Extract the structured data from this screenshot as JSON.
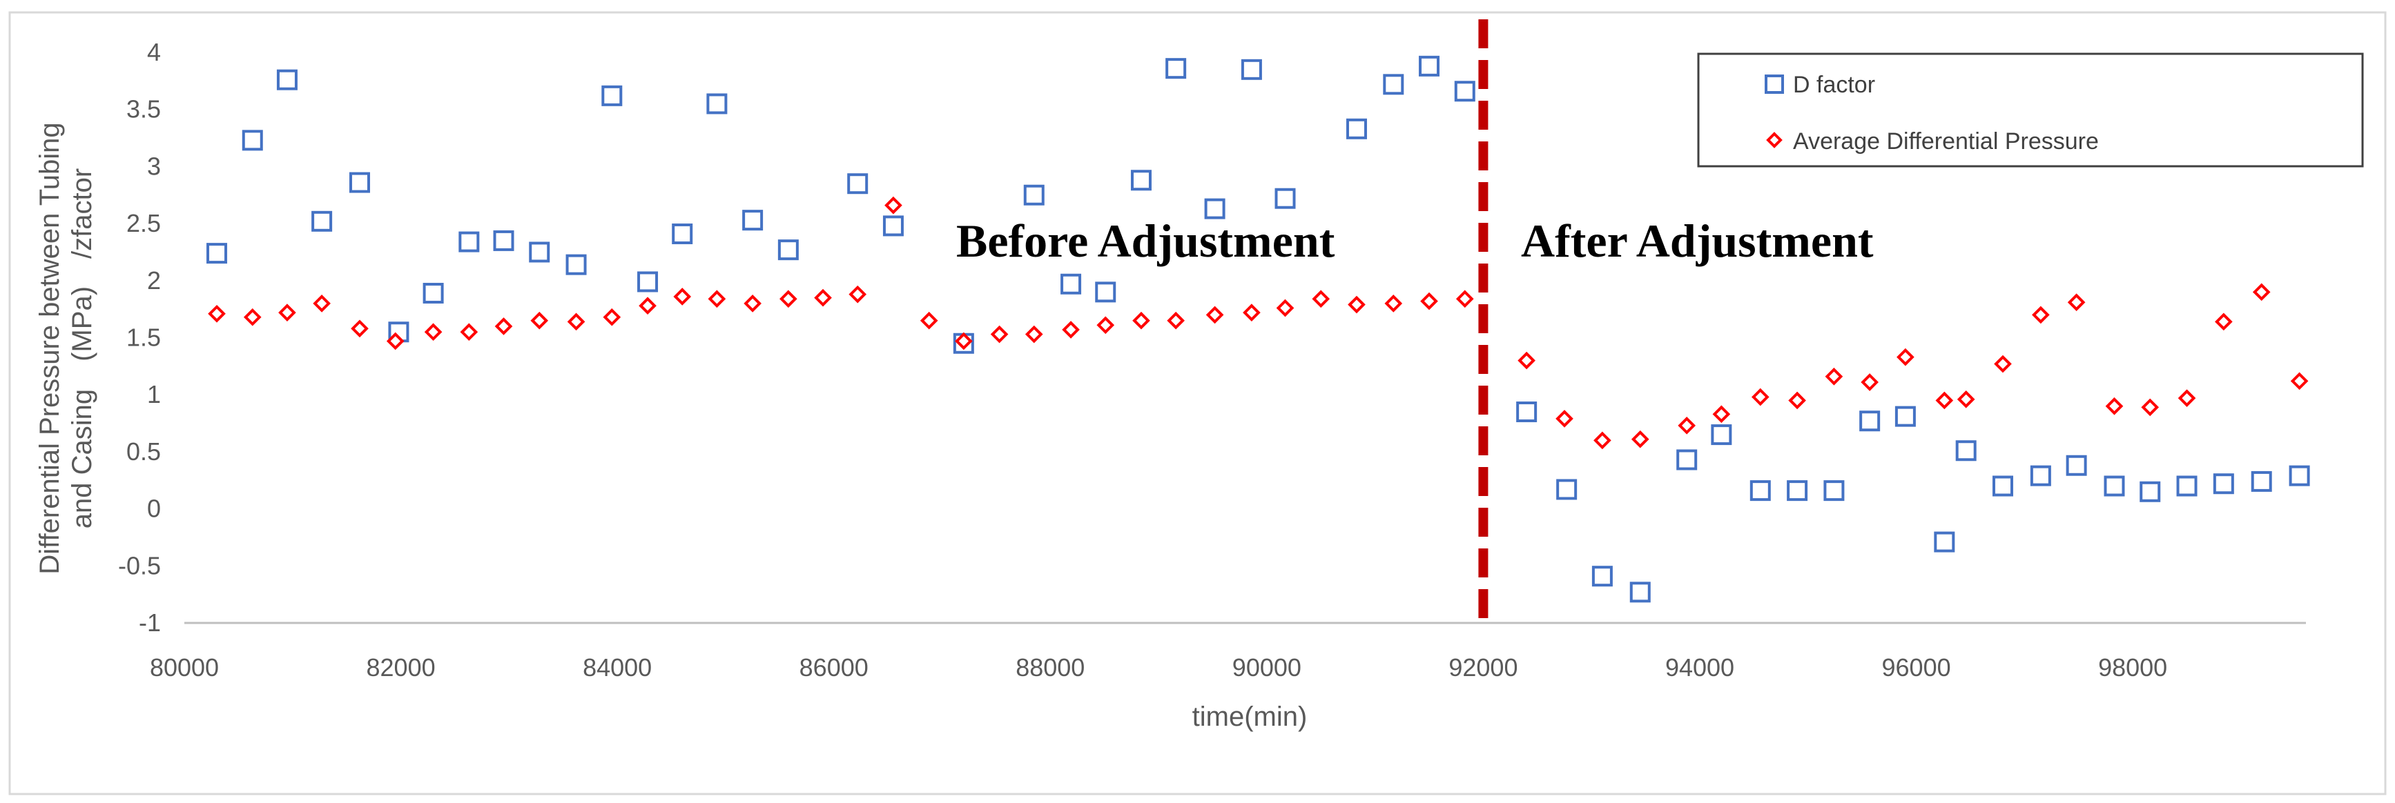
{
  "chart_data": {
    "type": "scatter",
    "xlabel": "time(min)",
    "ylabel_line1": "Differential Pressure between Tubing",
    "ylabel_line2": "and Casing　(MPa)　/zfactor",
    "xlim": [
      80000,
      99600
    ],
    "ylim": [
      -1,
      4
    ],
    "x_ticks": [
      "80000",
      "82000",
      "84000",
      "86000",
      "88000",
      "90000",
      "92000",
      "94000",
      "96000",
      "98000"
    ],
    "y_ticks": [
      "4",
      "3.5",
      "3",
      "2.5",
      "2",
      "1.5",
      "1",
      "0.5",
      "0",
      "-0.5",
      "-1"
    ],
    "grid": false,
    "legend_position": "top-right",
    "divider_x": 92000,
    "annotations": {
      "before": "Before Adjustment",
      "after": "After Adjustment"
    },
    "series": [
      {
        "name": "D  factor",
        "marker": "square",
        "color": "#4472C4",
        "points": [
          [
            80300,
            2.24
          ],
          [
            80630,
            3.23
          ],
          [
            80950,
            3.76
          ],
          [
            81270,
            2.52
          ],
          [
            81620,
            2.86
          ],
          [
            81980,
            1.55
          ],
          [
            82300,
            1.89
          ],
          [
            82630,
            2.34
          ],
          [
            82950,
            2.35
          ],
          [
            83280,
            2.25
          ],
          [
            83620,
            2.14
          ],
          [
            83950,
            3.62
          ],
          [
            84280,
            1.99
          ],
          [
            84600,
            2.41
          ],
          [
            84920,
            3.55
          ],
          [
            85250,
            2.53
          ],
          [
            85580,
            2.27
          ],
          [
            86220,
            2.85
          ],
          [
            86550,
            2.48
          ],
          [
            87200,
            1.45
          ],
          [
            87850,
            2.75
          ],
          [
            88190,
            1.97
          ],
          [
            88510,
            1.9
          ],
          [
            88840,
            2.88
          ],
          [
            89160,
            3.86
          ],
          [
            89520,
            2.63
          ],
          [
            89860,
            3.85
          ],
          [
            90170,
            2.72
          ],
          [
            90830,
            3.33
          ],
          [
            91170,
            3.72
          ],
          [
            91500,
            3.88
          ],
          [
            91830,
            3.66
          ],
          [
            92400,
            0.85
          ],
          [
            92770,
            0.17
          ],
          [
            93100,
            -0.59
          ],
          [
            93450,
            -0.73
          ],
          [
            93880,
            0.43
          ],
          [
            94200,
            0.65
          ],
          [
            94560,
            0.16
          ],
          [
            94900,
            0.16
          ],
          [
            95240,
            0.16
          ],
          [
            95570,
            0.77
          ],
          [
            95900,
            0.81
          ],
          [
            96260,
            -0.29
          ],
          [
            96460,
            0.51
          ],
          [
            96800,
            0.2
          ],
          [
            97150,
            0.29
          ],
          [
            97480,
            0.38
          ],
          [
            97830,
            0.2
          ],
          [
            98160,
            0.15
          ],
          [
            98500,
            0.2
          ],
          [
            98840,
            0.22
          ],
          [
            99190,
            0.24
          ],
          [
            99540,
            0.29
          ]
        ]
      },
      {
        "name": "Average Differential Pressure",
        "marker": "diamond",
        "color": "#FF0000",
        "points": [
          [
            80300,
            1.71
          ],
          [
            80630,
            1.68
          ],
          [
            80950,
            1.72
          ],
          [
            81270,
            1.8
          ],
          [
            81620,
            1.58
          ],
          [
            81950,
            1.47
          ],
          [
            82300,
            1.55
          ],
          [
            82630,
            1.55
          ],
          [
            82950,
            1.6
          ],
          [
            83280,
            1.65
          ],
          [
            83620,
            1.64
          ],
          [
            83950,
            1.68
          ],
          [
            84280,
            1.78
          ],
          [
            84600,
            1.86
          ],
          [
            84920,
            1.84
          ],
          [
            85250,
            1.8
          ],
          [
            85580,
            1.84
          ],
          [
            85900,
            1.85
          ],
          [
            86220,
            1.88
          ],
          [
            86550,
            2.66
          ],
          [
            86880,
            1.65
          ],
          [
            87200,
            1.47
          ],
          [
            87530,
            1.53
          ],
          [
            87850,
            1.53
          ],
          [
            88190,
            1.57
          ],
          [
            88510,
            1.61
          ],
          [
            88840,
            1.65
          ],
          [
            89160,
            1.65
          ],
          [
            89520,
            1.7
          ],
          [
            89860,
            1.72
          ],
          [
            90170,
            1.76
          ],
          [
            90500,
            1.84
          ],
          [
            90830,
            1.79
          ],
          [
            91170,
            1.8
          ],
          [
            91500,
            1.82
          ],
          [
            91830,
            1.84
          ],
          [
            92400,
            1.3
          ],
          [
            92750,
            0.79
          ],
          [
            93100,
            0.6
          ],
          [
            93450,
            0.61
          ],
          [
            93880,
            0.73
          ],
          [
            94200,
            0.83
          ],
          [
            94560,
            0.98
          ],
          [
            94900,
            0.95
          ],
          [
            95240,
            1.16
          ],
          [
            95570,
            1.11
          ],
          [
            95900,
            1.33
          ],
          [
            96260,
            0.95
          ],
          [
            96460,
            0.96
          ],
          [
            96800,
            1.27
          ],
          [
            97150,
            1.7
          ],
          [
            97480,
            1.81
          ],
          [
            97830,
            0.9
          ],
          [
            98160,
            0.89
          ],
          [
            98500,
            0.97
          ],
          [
            98840,
            1.64
          ],
          [
            99190,
            1.9
          ],
          [
            99540,
            1.12
          ]
        ]
      }
    ]
  }
}
